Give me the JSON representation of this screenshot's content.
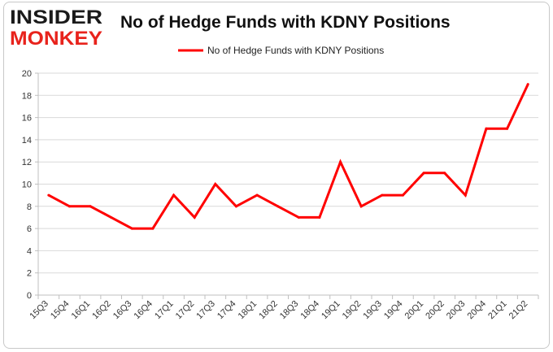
{
  "logo": {
    "line1": "INSIDER",
    "line2": "MONKEY"
  },
  "colors": {
    "series": "#ff0000",
    "grid": "#d9d9d9",
    "axis": "#bfbfbf",
    "logo_dark": "#1a1a1a",
    "logo_red": "#e8231c"
  },
  "chart_data": {
    "type": "line",
    "title": "No of Hedge Funds with KDNY Positions",
    "xlabel": "",
    "ylabel": "",
    "categories": [
      "15Q3",
      "15Q4",
      "16Q1",
      "16Q2",
      "16Q3",
      "16Q4",
      "17Q1",
      "17Q2",
      "17Q3",
      "17Q4",
      "18Q1",
      "18Q2",
      "18Q3",
      "18Q4",
      "19Q1",
      "19Q2",
      "19Q3",
      "19Q4",
      "20Q1",
      "20Q2",
      "20Q3",
      "20Q4",
      "21Q1",
      "21Q2"
    ],
    "series": [
      {
        "name": "No of Hedge Funds with KDNY Positions",
        "values": [
          9,
          8,
          8,
          7,
          6,
          6,
          9,
          7,
          10,
          8,
          9,
          8,
          7,
          7,
          12,
          8,
          9,
          9,
          11,
          11,
          9,
          15,
          15,
          19
        ]
      }
    ],
    "ylim": [
      0,
      20
    ],
    "yticks": [
      0,
      2,
      4,
      6,
      8,
      10,
      12,
      14,
      16,
      18,
      20
    ],
    "grid": "horizontal",
    "legend": "top-center"
  }
}
